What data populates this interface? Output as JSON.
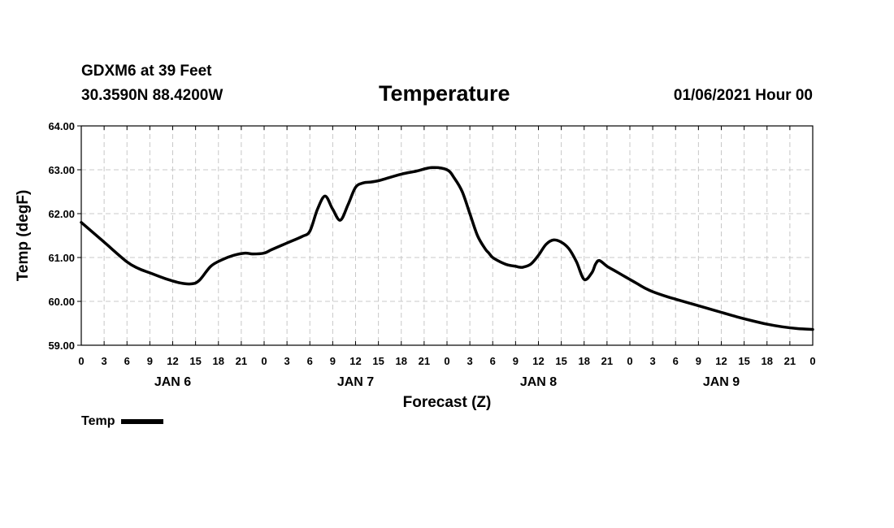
{
  "header": {
    "station": "GDXM6 at 39 Feet",
    "coords": "30.3590N 88.4200W",
    "title": "Temperature",
    "run_time": "01/06/2021 Hour 00"
  },
  "legend": {
    "label": "Temp"
  },
  "chart_data": {
    "type": "line",
    "title": "Temperature",
    "xlabel": "Forecast (Z)",
    "ylabel": "Temp (degF)",
    "xlim": [
      0,
      96
    ],
    "ylim": [
      59,
      64
    ],
    "grid": true,
    "legend_position": "bottom-left",
    "x_ticks": [
      0,
      3,
      6,
      9,
      12,
      15,
      18,
      21,
      24,
      27,
      30,
      33,
      36,
      39,
      42,
      45,
      48,
      51,
      54,
      57,
      60,
      63,
      66,
      69,
      72,
      75,
      78,
      81,
      84,
      87,
      90,
      93,
      96
    ],
    "x_tick_labels": [
      "0",
      "3",
      "6",
      "9",
      "12",
      "15",
      "18",
      "21",
      "0",
      "3",
      "6",
      "9",
      "12",
      "15",
      "18",
      "21",
      "0",
      "3",
      "6",
      "9",
      "12",
      "15",
      "18",
      "21",
      "0",
      "3",
      "6",
      "9",
      "12",
      "15",
      "18",
      "21",
      "0"
    ],
    "y_ticks": [
      59,
      60,
      61,
      62,
      63,
      64
    ],
    "y_tick_labels": [
      "59.00",
      "60.00",
      "61.00",
      "62.00",
      "63.00",
      "64.00"
    ],
    "day_labels": [
      {
        "x": 12,
        "label": "JAN 6"
      },
      {
        "x": 36,
        "label": "JAN 7"
      },
      {
        "x": 60,
        "label": "JAN 8"
      },
      {
        "x": 84,
        "label": "JAN 9"
      }
    ],
    "series": [
      {
        "name": "Temp",
        "x": [
          0,
          3,
          6,
          7.5,
          9,
          11,
          13,
          14.5,
          15.5,
          17,
          18.5,
          20,
          21.5,
          22.5,
          24,
          25,
          27,
          29,
          30,
          31,
          32,
          33,
          34,
          35,
          36,
          37,
          38,
          39,
          40,
          42,
          44,
          46,
          48,
          49,
          50,
          51,
          52,
          53,
          53.5,
          54,
          55,
          56,
          57,
          57.5,
          58,
          59,
          60,
          61,
          62,
          63,
          64,
          65,
          66,
          67,
          67.5,
          68,
          69,
          70,
          71,
          72,
          73,
          74,
          75,
          77,
          78,
          80,
          82,
          84,
          86,
          88,
          90,
          92,
          94,
          96
        ],
        "y": [
          61.8,
          61.35,
          60.9,
          60.75,
          60.65,
          60.52,
          60.42,
          60.4,
          60.48,
          60.8,
          60.95,
          61.05,
          61.1,
          61.08,
          61.1,
          61.18,
          61.33,
          61.48,
          61.6,
          62.1,
          62.4,
          62.1,
          61.85,
          62.2,
          62.6,
          62.7,
          62.72,
          62.75,
          62.8,
          62.9,
          62.97,
          63.05,
          63.0,
          62.8,
          62.5,
          62.0,
          61.5,
          61.2,
          61.1,
          61.0,
          60.9,
          60.83,
          60.8,
          60.78,
          60.78,
          60.85,
          61.05,
          61.3,
          61.4,
          61.35,
          61.2,
          60.9,
          60.5,
          60.65,
          60.85,
          60.93,
          60.8,
          60.7,
          60.6,
          60.5,
          60.4,
          60.3,
          60.22,
          60.1,
          60.05,
          59.95,
          59.85,
          59.75,
          59.65,
          59.56,
          59.48,
          59.42,
          59.38,
          59.36
        ]
      }
    ]
  }
}
